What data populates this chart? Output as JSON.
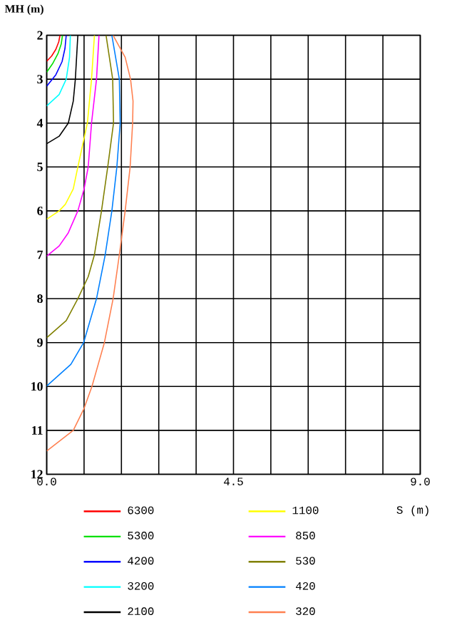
{
  "chart_data": {
    "type": "line",
    "xlabel": "S (m)",
    "ylabel": "MH (m)",
    "xlim": [
      0,
      9
    ],
    "ylim": [
      12,
      2
    ],
    "xticks": [
      {
        "value": 0,
        "label": "0.0"
      },
      {
        "value": 0.9,
        "label": null
      },
      {
        "value": 1.8,
        "label": null
      },
      {
        "value": 2.7,
        "label": null
      },
      {
        "value": 3.6,
        "label": null
      },
      {
        "value": 4.5,
        "label": "4.5"
      },
      {
        "value": 5.4,
        "label": null
      },
      {
        "value": 6.3,
        "label": null
      },
      {
        "value": 7.2,
        "label": null
      },
      {
        "value": 8.1,
        "label": null
      },
      {
        "value": 9,
        "label": "9.0"
      }
    ],
    "yticks": [
      2,
      3,
      4,
      5,
      6,
      7,
      8,
      9,
      10,
      11,
      12
    ],
    "grid": true,
    "legend": "bottom",
    "marker": "none",
    "line_style": "solid",
    "series": [
      {
        "name": "6300",
        "color": "#ff0000",
        "x": [
          0.32,
          0.29,
          0.22,
          0.12,
          0
        ],
        "values": [
          2,
          2.15,
          2.32,
          2.47,
          2.59
        ]
      },
      {
        "name": "5300",
        "color": "#00e000",
        "x": [
          0.38,
          0.35,
          0.27,
          0.14,
          0
        ],
        "values": [
          2,
          2.2,
          2.42,
          2.65,
          2.84
        ]
      },
      {
        "name": "4200",
        "color": "#0000ff",
        "x": [
          0.47,
          0.44,
          0.37,
          0.22,
          0
        ],
        "values": [
          2,
          2.3,
          2.6,
          2.9,
          3.16
        ]
      },
      {
        "name": "3200",
        "color": "#00ffff",
        "x": [
          0.57,
          0.55,
          0.47,
          0.3,
          0
        ],
        "values": [
          2,
          2.5,
          3,
          3.35,
          3.61
        ]
      },
      {
        "name": "2100",
        "color": "#000000",
        "x": [
          0.75,
          0.69,
          0.64,
          0.52,
          0.3,
          0
        ],
        "values": [
          2,
          3,
          3.5,
          4,
          4.3,
          4.47
        ]
      },
      {
        "name": "1100",
        "color": "#ffff00",
        "x": [
          1.15,
          1.08,
          0.98,
          0.75,
          0.64,
          0.45,
          0.3,
          0
        ],
        "values": [
          2,
          3,
          4,
          5,
          5.5,
          5.85,
          6,
          6.19
        ]
      },
      {
        "name": "850",
        "color": "#ff00ff",
        "x": [
          1.26,
          1.2,
          1.08,
          1.0,
          0.9,
          0.75,
          0.52,
          0.3,
          0
        ],
        "values": [
          2,
          3,
          4,
          5,
          5.5,
          6,
          6.5,
          6.8,
          7.03
        ]
      },
      {
        "name": "530",
        "color": "#808000",
        "x": [
          1.43,
          1.59,
          1.61,
          1.47,
          1.32,
          1.15,
          1.0,
          0.75,
          0.47,
          0
        ],
        "values": [
          2,
          3,
          4,
          5,
          6,
          7,
          7.5,
          8,
          8.5,
          8.89
        ]
      },
      {
        "name": "420",
        "color": "#0080ff",
        "x": [
          1.57,
          1.75,
          1.77,
          1.69,
          1.57,
          1.41,
          1.2,
          0.89,
          0.58,
          0
        ],
        "values": [
          2,
          3,
          4,
          5,
          6,
          7,
          8,
          9,
          9.5,
          9.99
        ]
      },
      {
        "name": "320",
        "color": "#ff8050",
        "x": [
          1.6,
          1.89,
          2.02,
          2.08,
          2.07,
          2.01,
          1.89,
          1.75,
          1.6,
          1.39,
          1.09,
          0.9,
          0.64,
          0
        ],
        "values": [
          2,
          2.5,
          3,
          3.5,
          4,
          5,
          6,
          7,
          8,
          9,
          10,
          10.5,
          11,
          11.47
        ]
      }
    ]
  }
}
